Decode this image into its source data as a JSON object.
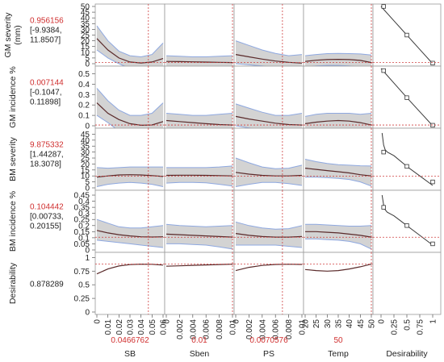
{
  "colors": {
    "band": "#d3d3d3",
    "band_edge": "#8ea8e0",
    "curve": "#5a2a2a",
    "refline": "#d04040",
    "value_text": "#d03030",
    "desirability_line": "#3a3a3a",
    "frame": "#9a9a9a",
    "text": "#222222"
  },
  "chart_data": {
    "type": "line",
    "title": "",
    "factors": [
      {
        "name": "SB",
        "current": "0.0466762",
        "current_value": 0.0466762,
        "xlim": [
          0,
          0.06
        ],
        "ticks": [
          "0",
          "0.01",
          "0.02",
          "0.03",
          "0.04",
          "0.05",
          "0.06"
        ]
      },
      {
        "name": "Sben",
        "current": "0.01",
        "current_value": 0.01,
        "xlim": [
          0,
          0.01
        ],
        "ticks": [
          "0",
          "0.002",
          "0.004",
          "0.006",
          "0.008",
          "0.01"
        ]
      },
      {
        "name": "PS",
        "current": "0.0070576",
        "current_value": 0.0070576,
        "xlim": [
          0,
          0.01
        ],
        "ticks": [
          "0",
          "0.002",
          "0.004",
          "0.006",
          "0.008",
          "0.01"
        ]
      },
      {
        "name": "Temp",
        "current": "50",
        "current_value": 50,
        "xlim": [
          20,
          50
        ],
        "ticks": [
          "20",
          "25",
          "30",
          "35",
          "40",
          "45",
          "50"
        ]
      }
    ],
    "desirability_axis": {
      "label": "Desirability",
      "xlim": [
        0,
        1
      ],
      "ticks": [
        "0",
        "0.25",
        "0.5",
        "0.75",
        "1"
      ]
    },
    "responses": [
      {
        "label_lines": [
          "GM severity",
          "(mm)"
        ],
        "value": "0.956156",
        "ci": [
          "[-9.9384,",
          "11.8507]"
        ],
        "current": 0.956156,
        "ylim": [
          0,
          50
        ],
        "yticks": [
          "0",
          "5",
          "10",
          "15",
          "20",
          "25",
          "30",
          "35",
          "40",
          "45",
          "50"
        ],
        "curves": [
          {
            "x": [
              0,
              0.01,
              0.02,
              0.03,
              0.04,
              0.05,
              0.06
            ],
            "y": [
              22,
              12,
              5,
              1.5,
              0.6,
              1.5,
              4.5
            ],
            "lower": [
              12,
              5,
              0,
              -4,
              -5,
              -4.5,
              -3
            ],
            "upper": [
              33,
              20,
              11,
              7,
              6,
              8,
              18
            ]
          },
          {
            "x": [
              0,
              0.002,
              0.004,
              0.006,
              0.008,
              0.01
            ],
            "y": [
              2,
              1.8,
              1.6,
              1.4,
              1.2,
              1
            ],
            "lower": [
              -3,
              -3.5,
              -4,
              -4.5,
              -5,
              -5.5
            ],
            "upper": [
              7,
              6.5,
              6,
              6,
              6.5,
              7
            ]
          },
          {
            "x": [
              0,
              0.002,
              0.004,
              0.006,
              0.008,
              0.01
            ],
            "y": [
              8,
              6,
              4,
              2.3,
              1.2,
              0.5
            ],
            "lower": [
              0,
              -1,
              -2,
              -3.5,
              -4.5,
              -5
            ],
            "upper": [
              20,
              16,
              12,
              9,
              7,
              8
            ]
          },
          {
            "x": [
              20,
              25,
              30,
              35,
              40,
              45,
              50
            ],
            "y": [
              2,
              3,
              3.6,
              3.8,
              3.6,
              2.9,
              1
            ],
            "lower": [
              -3,
              -2,
              -1.5,
              -1.5,
              -2,
              -3,
              -5
            ],
            "upper": [
              7,
              8,
              8.8,
              9,
              8.8,
              8.5,
              7.5
            ]
          }
        ],
        "desirability": {
          "x": [
            0,
            0.25,
            0.5,
            0.75,
            1
          ],
          "y": [
            50,
            37.5,
            25,
            12.5,
            0
          ],
          "markers": [
            [
              0.05,
              50
            ],
            [
              0.5,
              25
            ],
            [
              1,
              0.5
            ]
          ]
        }
      },
      {
        "label_lines": [
          "GM incidence %"
        ],
        "value": "0.007144",
        "ci": [
          "[-0.1047,",
          "0.11898]"
        ],
        "current": 0.007144,
        "ylim": [
          0,
          0.55
        ],
        "yticks": [
          "0",
          "0.1",
          "0.2",
          "0.3",
          "0.4",
          "0.5"
        ],
        "curves": [
          {
            "x": [
              0,
              0.01,
              0.02,
              0.03,
              0.04,
              0.05,
              0.06
            ],
            "y": [
              0.22,
              0.12,
              0.06,
              0.02,
              0.005,
              0.008,
              0.04
            ],
            "lower": [
              0.1,
              0.03,
              -0.05,
              -0.09,
              -0.1,
              -0.1,
              -0.08
            ],
            "upper": [
              0.36,
              0.24,
              0.15,
              0.1,
              0.1,
              0.12,
              0.22
            ]
          },
          {
            "x": [
              0,
              0.002,
              0.004,
              0.006,
              0.008,
              0.01
            ],
            "y": [
              0.05,
              0.04,
              0.03,
              0.02,
              0.012,
              0.007
            ],
            "lower": [
              -0.06,
              -0.07,
              -0.08,
              -0.09,
              -0.1,
              -0.1
            ],
            "upper": [
              0.12,
              0.11,
              0.1,
              0.1,
              0.11,
              0.12
            ]
          },
          {
            "x": [
              0,
              0.002,
              0.004,
              0.006,
              0.008,
              0.01
            ],
            "y": [
              0.09,
              0.065,
              0.045,
              0.025,
              0.012,
              0.007
            ],
            "lower": [
              0,
              -0.02,
              -0.04,
              -0.06,
              -0.08,
              -0.1
            ],
            "upper": [
              0.21,
              0.17,
              0.13,
              0.1,
              0.1,
              0.12
            ]
          },
          {
            "x": [
              20,
              25,
              30,
              35,
              40,
              45,
              50
            ],
            "y": [
              0.02,
              0.035,
              0.045,
              0.05,
              0.045,
              0.03,
              0.007
            ],
            "lower": [
              -0.05,
              -0.04,
              -0.03,
              -0.03,
              -0.04,
              -0.06,
              -0.1
            ],
            "upper": [
              0.09,
              0.11,
              0.12,
              0.12,
              0.12,
              0.11,
              0.12
            ]
          }
        ],
        "desirability": {
          "x": [
            0,
            0.25,
            0.5,
            0.75,
            1
          ],
          "y": [
            0.55,
            0.41,
            0.27,
            0.135,
            0
          ],
          "markers": [
            [
              0.05,
              0.53
            ],
            [
              0.5,
              0.27
            ],
            [
              1,
              0.005
            ]
          ]
        }
      },
      {
        "label_lines": [
          "BM severity"
        ],
        "value": "9.875332",
        "ci": [
          "[1.44287,",
          "18.3078]"
        ],
        "current": 9.875332,
        "ylim": [
          0,
          48
        ],
        "yticks": [
          "0",
          "5",
          "10",
          "15",
          "20",
          "25",
          "30",
          "35",
          "40",
          "45"
        ],
        "curves": [
          {
            "x": [
              0,
              0.01,
              0.02,
              0.03,
              0.04,
              0.05,
              0.06
            ],
            "y": [
              9,
              10,
              10.8,
              11,
              10.8,
              10.3,
              9.5
            ],
            "lower": [
              1,
              3,
              4,
              4.5,
              4,
              3,
              1
            ],
            "upper": [
              17,
              16.5,
              17,
              17.5,
              17.5,
              17.5,
              17.5
            ]
          },
          {
            "x": [
              0,
              0.002,
              0.004,
              0.006,
              0.008,
              0.01
            ],
            "y": [
              10.5,
              10.6,
              10.6,
              10.5,
              10.3,
              10
            ],
            "lower": [
              4,
              4.5,
              4.5,
              4.2,
              3,
              1.5
            ],
            "upper": [
              17,
              17,
              17,
              17,
              17.5,
              18.3
            ]
          },
          {
            "x": [
              0,
              0.002,
              0.004,
              0.006,
              0.008,
              0.01
            ],
            "y": [
              13,
              11.5,
              10.5,
              10,
              10,
              10.5
            ],
            "lower": [
              1,
              3,
              4.5,
              4.5,
              3.5,
              2
            ],
            "upper": [
              25,
              21,
              17.5,
              16,
              16.5,
              19
            ]
          },
          {
            "x": [
              20,
              25,
              30,
              35,
              40,
              45,
              50
            ],
            "y": [
              16.5,
              15.5,
              14.5,
              13.5,
              12.5,
              11,
              10
            ],
            "lower": [
              9,
              9,
              8.5,
              8,
              7,
              5,
              1.5
            ],
            "upper": [
              24,
              22,
              20.5,
              19.5,
              19,
              18.5,
              18.3
            ]
          }
        ],
        "desirability": {
          "x": [
            0.02,
            0.05,
            0.08,
            0.12,
            0.25,
            0.5,
            0.75,
            1
          ],
          "y": [
            46,
            36,
            32,
            30,
            27,
            18,
            10,
            2
          ],
          "markers": [
            [
              0.05,
              30
            ],
            [
              0.5,
              18
            ],
            [
              1,
              5
            ]
          ]
        }
      },
      {
        "label_lines": [
          "BM incidence %"
        ],
        "value": "0.104442",
        "ci": [
          "[0.00733,",
          "0.20155]"
        ],
        "current": 0.104442,
        "ylim": [
          0,
          0.47
        ],
        "yticks": [
          "0",
          "0.05",
          "0.1",
          "0.15",
          "0.2",
          "0.25",
          "0.3",
          "0.35",
          "0.4",
          "0.45"
        ],
        "curves": [
          {
            "x": [
              0,
              0.01,
              0.02,
              0.03,
              0.04,
              0.05,
              0.06
            ],
            "y": [
              0.16,
              0.14,
              0.125,
              0.115,
              0.108,
              0.106,
              0.108
            ],
            "lower": [
              0.08,
              0.07,
              0.06,
              0.05,
              0.04,
              0.03,
              0.02
            ],
            "upper": [
              0.25,
              0.22,
              0.19,
              0.18,
              0.18,
              0.19,
              0.2
            ]
          },
          {
            "x": [
              0,
              0.002,
              0.004,
              0.006,
              0.008,
              0.01
            ],
            "y": [
              0.13,
              0.125,
              0.12,
              0.115,
              0.11,
              0.105
            ],
            "lower": [
              0.05,
              0.05,
              0.045,
              0.04,
              0.025,
              0.007
            ],
            "upper": [
              0.21,
              0.2,
              0.195,
              0.19,
              0.195,
              0.2
            ]
          },
          {
            "x": [
              0,
              0.002,
              0.004,
              0.006,
              0.008,
              0.01
            ],
            "y": [
              0.135,
              0.12,
              0.11,
              0.105,
              0.105,
              0.11
            ],
            "lower": [
              0.04,
              0.04,
              0.04,
              0.04,
              0.03,
              0.02
            ],
            "upper": [
              0.23,
              0.2,
              0.18,
              0.17,
              0.175,
              0.2
            ]
          },
          {
            "x": [
              20,
              25,
              30,
              35,
              40,
              45,
              50
            ],
            "y": [
              0.15,
              0.15,
              0.145,
              0.14,
              0.13,
              0.12,
              0.105
            ],
            "lower": [
              0.09,
              0.09,
              0.085,
              0.08,
              0.07,
              0.05,
              0.007
            ],
            "upper": [
              0.21,
              0.21,
              0.205,
              0.2,
              0.195,
              0.195,
              0.2
            ]
          }
        ],
        "desirability": {
          "x": [
            0.02,
            0.05,
            0.08,
            0.12,
            0.25,
            0.5,
            0.75,
            1
          ],
          "y": [
            0.45,
            0.37,
            0.33,
            0.31,
            0.28,
            0.2,
            0.12,
            0.04
          ],
          "markers": [
            [
              0.05,
              0.35
            ],
            [
              0.5,
              0.2
            ],
            [
              1,
              0.05
            ]
          ]
        }
      },
      {
        "label_lines": [
          "Desirability"
        ],
        "value": "0.878289",
        "ci": [],
        "current": 0.878289,
        "ylim": [
          0,
          1.05
        ],
        "yticks": [
          "0",
          "0.25",
          "0.5",
          "0.75",
          "1"
        ],
        "curves": [
          {
            "x": [
              0,
              0.01,
              0.02,
              0.03,
              0.04,
              0.05,
              0.06
            ],
            "y": [
              0.7,
              0.79,
              0.845,
              0.87,
              0.878,
              0.875,
              0.86
            ]
          },
          {
            "x": [
              0,
              0.002,
              0.004,
              0.006,
              0.008,
              0.01
            ],
            "y": [
              0.84,
              0.848,
              0.856,
              0.864,
              0.871,
              0.878
            ]
          },
          {
            "x": [
              0,
              0.002,
              0.004,
              0.006,
              0.008,
              0.01
            ],
            "y": [
              0.76,
              0.82,
              0.855,
              0.872,
              0.877,
              0.872
            ]
          },
          {
            "x": [
              20,
              25,
              30,
              35,
              40,
              45,
              50
            ],
            "y": [
              0.78,
              0.76,
              0.75,
              0.76,
              0.79,
              0.83,
              0.878
            ]
          }
        ],
        "desirability": null
      }
    ]
  }
}
